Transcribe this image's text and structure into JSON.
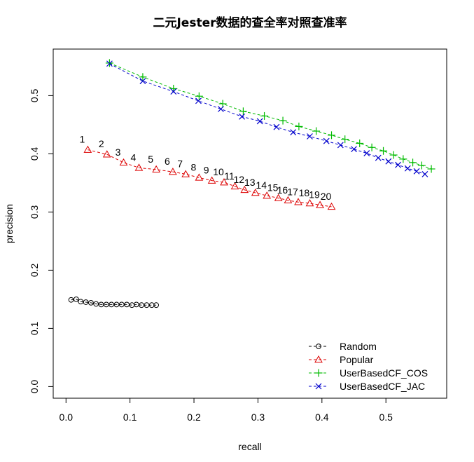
{
  "chart_data": {
    "type": "line",
    "title": "二元Jester数据的查全率对照查准率",
    "xlabel": "recall",
    "ylabel": "precision",
    "xlim": [
      -0.02,
      0.595
    ],
    "ylim": [
      -0.02,
      0.58
    ],
    "xticks": [
      "0.0",
      "0.1",
      "0.2",
      "0.3",
      "0.4",
      "0.5"
    ],
    "yticks": [
      "0.0",
      "0.1",
      "0.2",
      "0.3",
      "0.4",
      "0.5"
    ],
    "legend_position": "bottom-right",
    "series": [
      {
        "name": "Random",
        "color": "#000000",
        "marker": "circle",
        "x": [
          0.008,
          0.016,
          0.023,
          0.031,
          0.039,
          0.047,
          0.055,
          0.063,
          0.071,
          0.079,
          0.087,
          0.095,
          0.103,
          0.11,
          0.118,
          0.126,
          0.134,
          0.141
        ],
        "y": [
          0.149,
          0.15,
          0.146,
          0.145,
          0.144,
          0.142,
          0.141,
          0.141,
          0.141,
          0.141,
          0.141,
          0.141,
          0.14,
          0.141,
          0.14,
          0.14,
          0.14,
          0.14
        ]
      },
      {
        "name": "Popular",
        "color": "#dd0000",
        "marker": "triangle",
        "labels": [
          "1",
          "2",
          "3",
          "4",
          "5",
          "6",
          "7",
          "8",
          "9",
          "10",
          "11",
          "12",
          "13",
          "14",
          "15",
          "16",
          "17",
          "18",
          "19",
          "20"
        ],
        "x": [
          0.034,
          0.064,
          0.09,
          0.114,
          0.141,
          0.167,
          0.187,
          0.208,
          0.228,
          0.247,
          0.264,
          0.279,
          0.296,
          0.314,
          0.332,
          0.347,
          0.363,
          0.381,
          0.397,
          0.415
        ],
        "y": [
          0.407,
          0.399,
          0.385,
          0.376,
          0.373,
          0.369,
          0.365,
          0.359,
          0.354,
          0.351,
          0.344,
          0.338,
          0.333,
          0.328,
          0.324,
          0.32,
          0.317,
          0.315,
          0.312,
          0.309
        ]
      },
      {
        "name": "UserBasedCF_COS",
        "color": "#00bb00",
        "marker": "plus",
        "x": [
          0.068,
          0.12,
          0.168,
          0.208,
          0.245,
          0.277,
          0.31,
          0.339,
          0.364,
          0.391,
          0.415,
          0.436,
          0.459,
          0.478,
          0.496,
          0.512,
          0.527,
          0.542,
          0.556,
          0.571
        ],
        "y": [
          0.556,
          0.532,
          0.512,
          0.499,
          0.486,
          0.473,
          0.465,
          0.457,
          0.447,
          0.439,
          0.432,
          0.425,
          0.418,
          0.411,
          0.405,
          0.398,
          0.391,
          0.385,
          0.38,
          0.374
        ]
      },
      {
        "name": "UserBasedCF_JAC",
        "color": "#0000cc",
        "marker": "cross",
        "x": [
          0.068,
          0.12,
          0.168,
          0.207,
          0.242,
          0.275,
          0.303,
          0.329,
          0.355,
          0.381,
          0.407,
          0.429,
          0.45,
          0.47,
          0.488,
          0.504,
          0.519,
          0.534,
          0.548,
          0.561
        ],
        "y": [
          0.555,
          0.525,
          0.507,
          0.491,
          0.477,
          0.464,
          0.456,
          0.446,
          0.437,
          0.43,
          0.422,
          0.415,
          0.408,
          0.401,
          0.393,
          0.387,
          0.381,
          0.375,
          0.37,
          0.365
        ]
      }
    ]
  }
}
